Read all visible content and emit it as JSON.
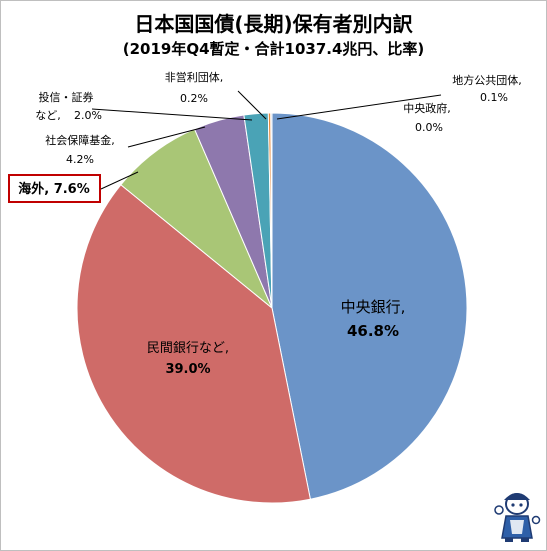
{
  "title": "日本国国債(長期)保有者別内訳",
  "subtitle": "(2019年Q4暫定・合計1037.4兆円、比率)",
  "chart_data": {
    "type": "pie",
    "title": "日本国国債(長期)保有者別内訳",
    "subtitle": "(2019年Q4暫定・合計1037.4兆円、比率)",
    "legend": "none",
    "start_angle_deg": 0,
    "direction": "clockwise",
    "slices": [
      {
        "key": "central_bank",
        "label": "中央銀行,",
        "value_label": "46.8%",
        "value": 46.8,
        "color": "#6b94c8"
      },
      {
        "key": "private_banks",
        "label": "民間銀行など,",
        "value_label": "39.0%",
        "value": 39.0,
        "color": "#cf6b68"
      },
      {
        "key": "overseas",
        "label": "海外,",
        "value_label": "7.6%",
        "value": 7.6,
        "color": "#a9c676"
      },
      {
        "key": "social_security",
        "label": "社会保障基金,",
        "value_label": "4.2%",
        "value": 4.2,
        "color": "#8e78ad"
      },
      {
        "key": "investment_trusts",
        "label": "投信・証券など,",
        "value_label": "2.0%",
        "value": 2.0,
        "color": "#4aa3b6"
      },
      {
        "key": "nonprofit",
        "label": "非営利団体,",
        "value_label": "0.2%",
        "value": 0.2,
        "color": "#e8893a"
      },
      {
        "key": "local_government",
        "label": "地方公共団体,",
        "value_label": "0.1%",
        "value": 0.1,
        "color": "#9db6d9"
      },
      {
        "key": "central_government",
        "label": "中央政府,",
        "value_label": "0.0%",
        "value": 0.0,
        "color": "#c89090"
      }
    ]
  },
  "labels": {
    "central_bank": {
      "name": "中央銀行,",
      "pct": "46.8%"
    },
    "private_banks": {
      "name": "民間銀行など,",
      "pct": "39.0%"
    },
    "overseas": {
      "text": "海外, 7.6%"
    },
    "social_security": {
      "name": "社会保障基金,",
      "pct": "4.2%"
    },
    "investment_trusts": {
      "name": "投信・証券",
      "name2": "など,",
      "pct": "2.0%"
    },
    "nonprofit": {
      "name": "非営利団体,",
      "pct": "0.2%"
    },
    "local_government": {
      "name": "地方公共団体,",
      "pct": "0.1%"
    },
    "central_government": {
      "name": "中央政府,",
      "pct": "0.0%"
    }
  },
  "colors": {
    "highlight_border": "#c00000",
    "leader_line": "#000000"
  }
}
